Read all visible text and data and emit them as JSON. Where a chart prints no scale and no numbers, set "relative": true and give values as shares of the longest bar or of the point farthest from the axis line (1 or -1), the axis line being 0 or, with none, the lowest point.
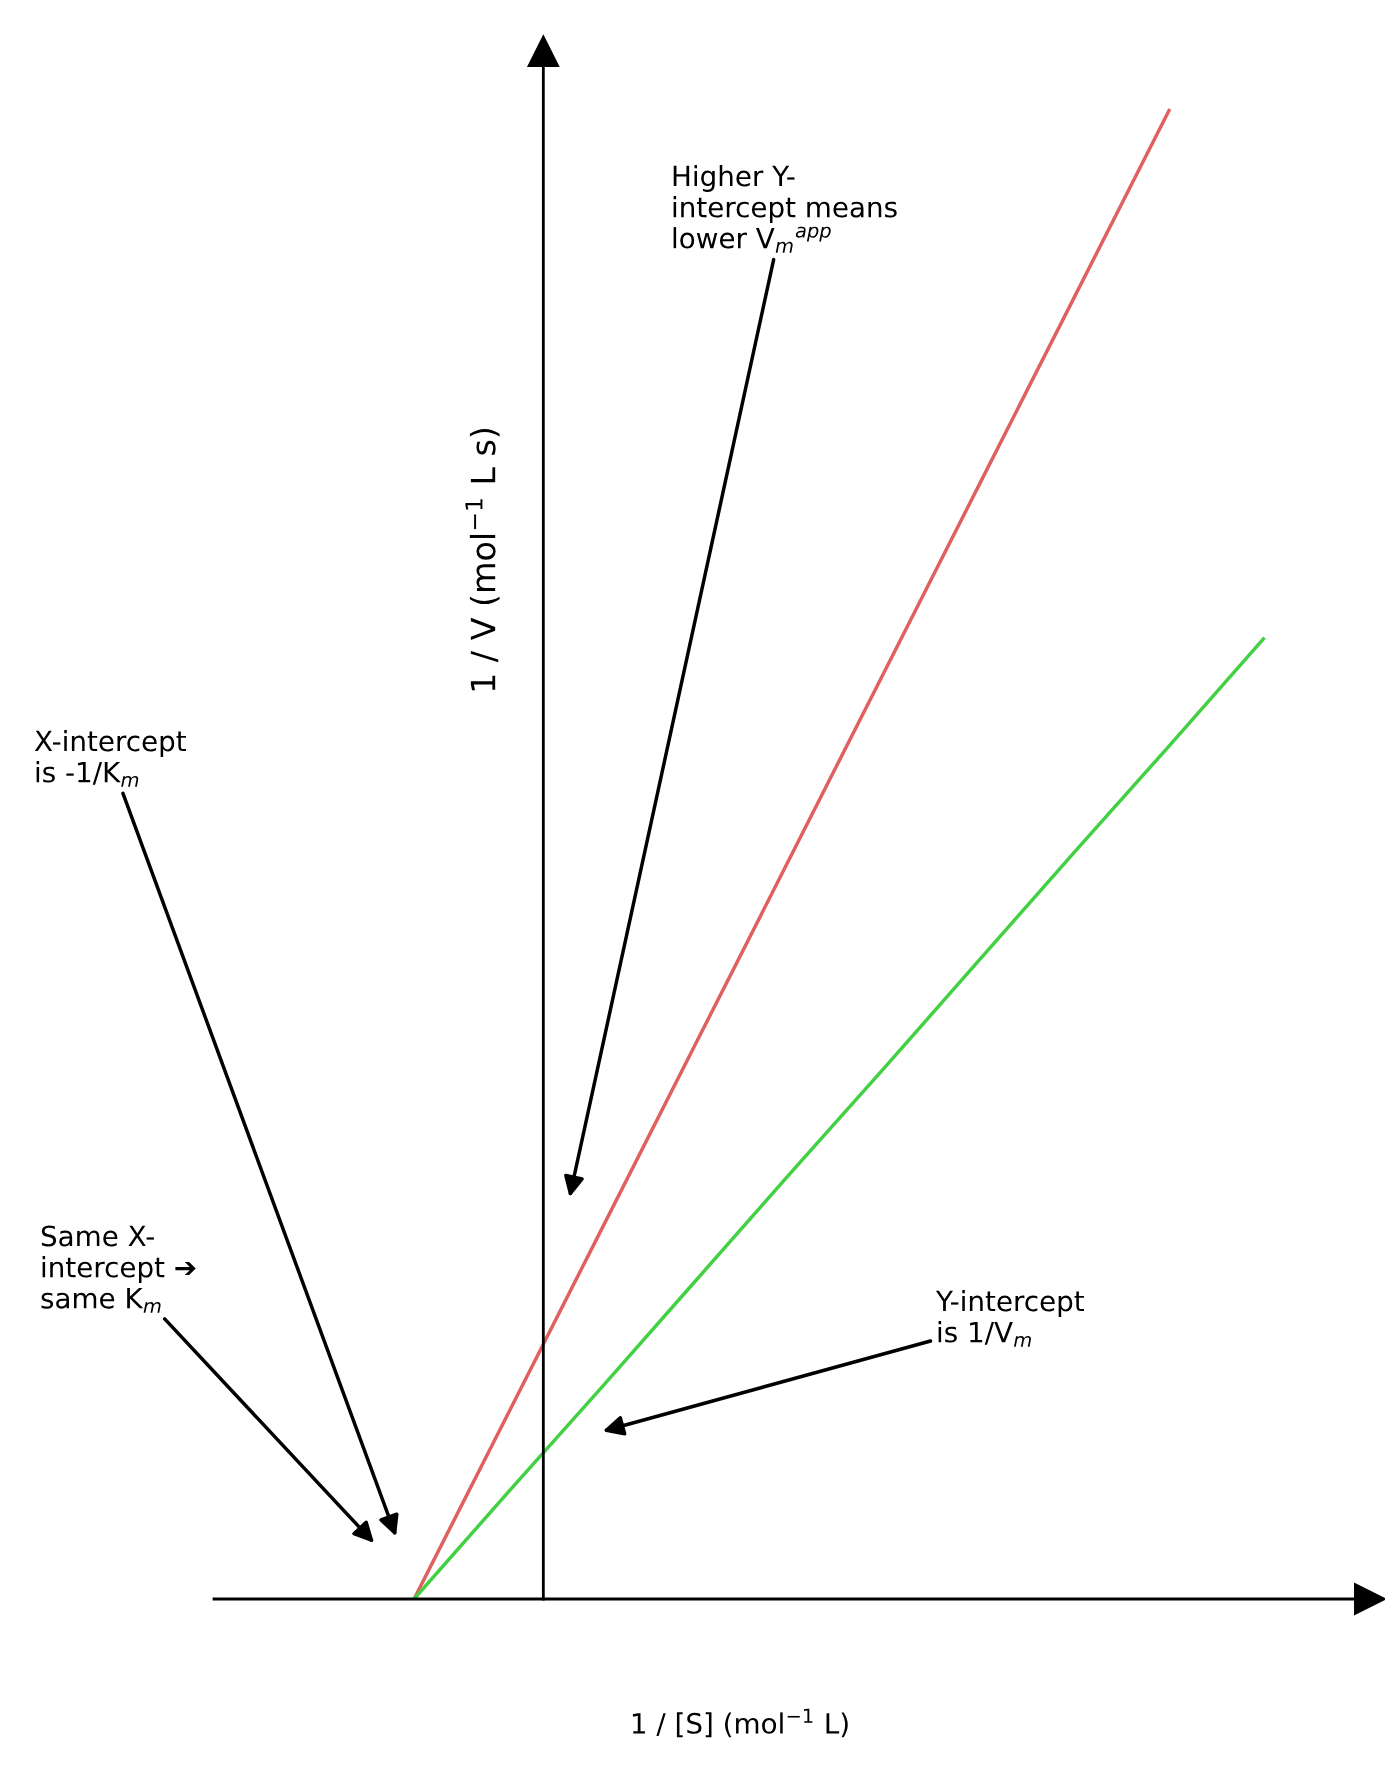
{
  "chart_data": {
    "type": "line",
    "relative": true,
    "xlabel": "1 / [S] (mol$^{−1}$ L)",
    "ylabel": "1 / V (mol$^{−1}$ L s)",
    "categories": [
      null,
      null,
      null,
      null,
      null,
      null,
      null,
      null,
      null,
      null
    ],
    "series": [
      {
        "color": "#e06060",
        "values": [
          0,
          0.125,
          0.25,
          0.375,
          0.5,
          0.625,
          0.75,
          0.875,
          1,
          null
        ]
      },
      {
        "color": "#44d044",
        "values": [
          0,
          0.072,
          0.143,
          0.215,
          0.287,
          0.358,
          0.43,
          0.502,
          0.573,
          0.645
        ]
      }
    ],
    "marker": "none",
    "line_style": "solid",
    "annotations": [
      "Higher Y-\nintercept means\nlower V$_{m}$$^{app}$",
      "X-intercept\nis -1/K$_{m}$",
      "Same X-\nintercept ➔\nsame K$_{m}$",
      "Y-intercept\nis 1/V$_{m}$"
    ]
  }
}
